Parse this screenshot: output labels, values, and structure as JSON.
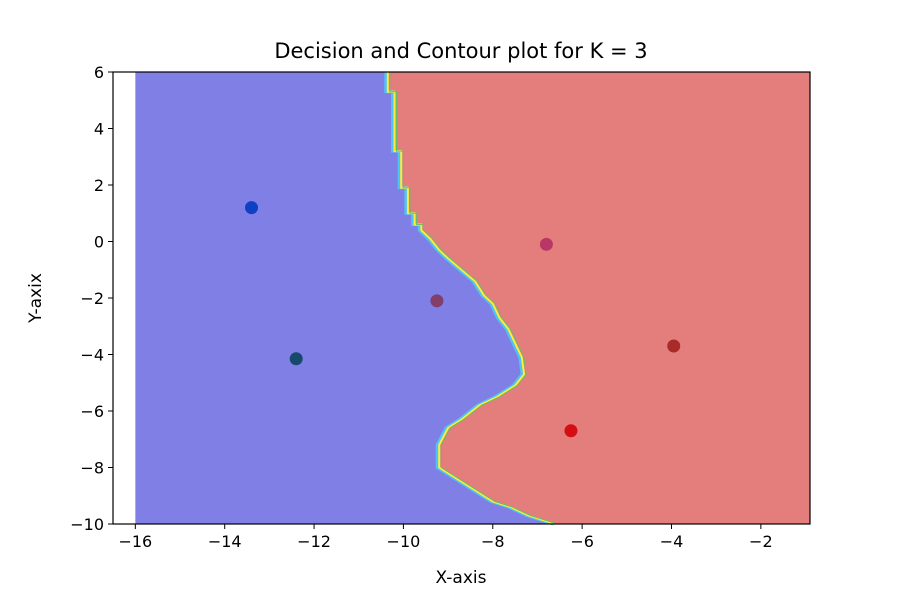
{
  "chart_data": {
    "type": "scatter",
    "title": "Decision and Contour plot for K = 3",
    "xlabel": "X-axis",
    "ylabel": "Y-axix",
    "xlim": [
      -16.5,
      -0.9
    ],
    "ylim": [
      -10,
      6
    ],
    "region_xlim": [
      -16,
      -0.9
    ],
    "xticks": [
      -16,
      -14,
      -12,
      -10,
      -8,
      -6,
      -4,
      -2
    ],
    "xtick_labels": [
      "−16",
      "−14",
      "−12",
      "−10",
      "−8",
      "−6",
      "−4",
      "−2"
    ],
    "yticks": [
      -10,
      -8,
      -6,
      -4,
      -2,
      0,
      2,
      4,
      6
    ],
    "ytick_labels": [
      "−10",
      "−8",
      "−6",
      "−4",
      "−2",
      "0",
      "2",
      "4",
      "6"
    ],
    "grid": false,
    "legend": "none",
    "region_colors": {
      "left": "#7f7fe5",
      "right": "#e47e7c"
    },
    "boundary_colors": [
      "#4fc3f7",
      "#ffeb3b",
      "#66bb6a"
    ],
    "decision_boundary": [
      {
        "x": -10.35,
        "y": 6.0
      },
      {
        "x": -10.35,
        "y": 5.3
      },
      {
        "x": -10.2,
        "y": 5.3
      },
      {
        "x": -10.2,
        "y": 3.2
      },
      {
        "x": -10.05,
        "y": 3.2
      },
      {
        "x": -10.05,
        "y": 1.9
      },
      {
        "x": -9.9,
        "y": 1.9
      },
      {
        "x": -9.9,
        "y": 1.0
      },
      {
        "x": -9.75,
        "y": 1.0
      },
      {
        "x": -9.75,
        "y": 0.6
      },
      {
        "x": -9.6,
        "y": 0.6
      },
      {
        "x": -9.6,
        "y": 0.4
      },
      {
        "x": -9.4,
        "y": 0.1
      },
      {
        "x": -9.2,
        "y": -0.3
      },
      {
        "x": -9.0,
        "y": -0.6
      },
      {
        "x": -8.7,
        "y": -1.0
      },
      {
        "x": -8.4,
        "y": -1.4
      },
      {
        "x": -8.2,
        "y": -1.9
      },
      {
        "x": -8.0,
        "y": -2.2
      },
      {
        "x": -7.85,
        "y": -2.7
      },
      {
        "x": -7.65,
        "y": -3.1
      },
      {
        "x": -7.5,
        "y": -3.6
      },
      {
        "x": -7.35,
        "y": -4.1
      },
      {
        "x": -7.3,
        "y": -4.7
      },
      {
        "x": -7.5,
        "y": -5.1
      },
      {
        "x": -7.9,
        "y": -5.5
      },
      {
        "x": -8.3,
        "y": -5.8
      },
      {
        "x": -8.7,
        "y": -6.3
      },
      {
        "x": -9.0,
        "y": -6.6
      },
      {
        "x": -9.1,
        "y": -6.9
      },
      {
        "x": -9.2,
        "y": -7.2
      },
      {
        "x": -9.2,
        "y": -8.0
      },
      {
        "x": -8.9,
        "y": -8.3
      },
      {
        "x": -8.5,
        "y": -8.7
      },
      {
        "x": -8.0,
        "y": -9.2
      },
      {
        "x": -7.6,
        "y": -9.4
      },
      {
        "x": -7.2,
        "y": -9.7
      },
      {
        "x": -6.8,
        "y": -9.9
      },
      {
        "x": -6.6,
        "y": -10.0
      }
    ],
    "series": [
      {
        "points": [
          {
            "x": -13.4,
            "y": 1.2,
            "color": "#0f3fc7"
          },
          {
            "x": -12.4,
            "y": -4.15,
            "color": "#17496c"
          },
          {
            "x": -9.25,
            "y": -2.1,
            "color": "#823f6c"
          },
          {
            "x": -6.8,
            "y": -0.1,
            "color": "#b83766"
          },
          {
            "x": -3.95,
            "y": -3.7,
            "color": "#a82b2a"
          },
          {
            "x": -6.25,
            "y": -6.7,
            "color": "#d40f14"
          }
        ]
      }
    ]
  }
}
